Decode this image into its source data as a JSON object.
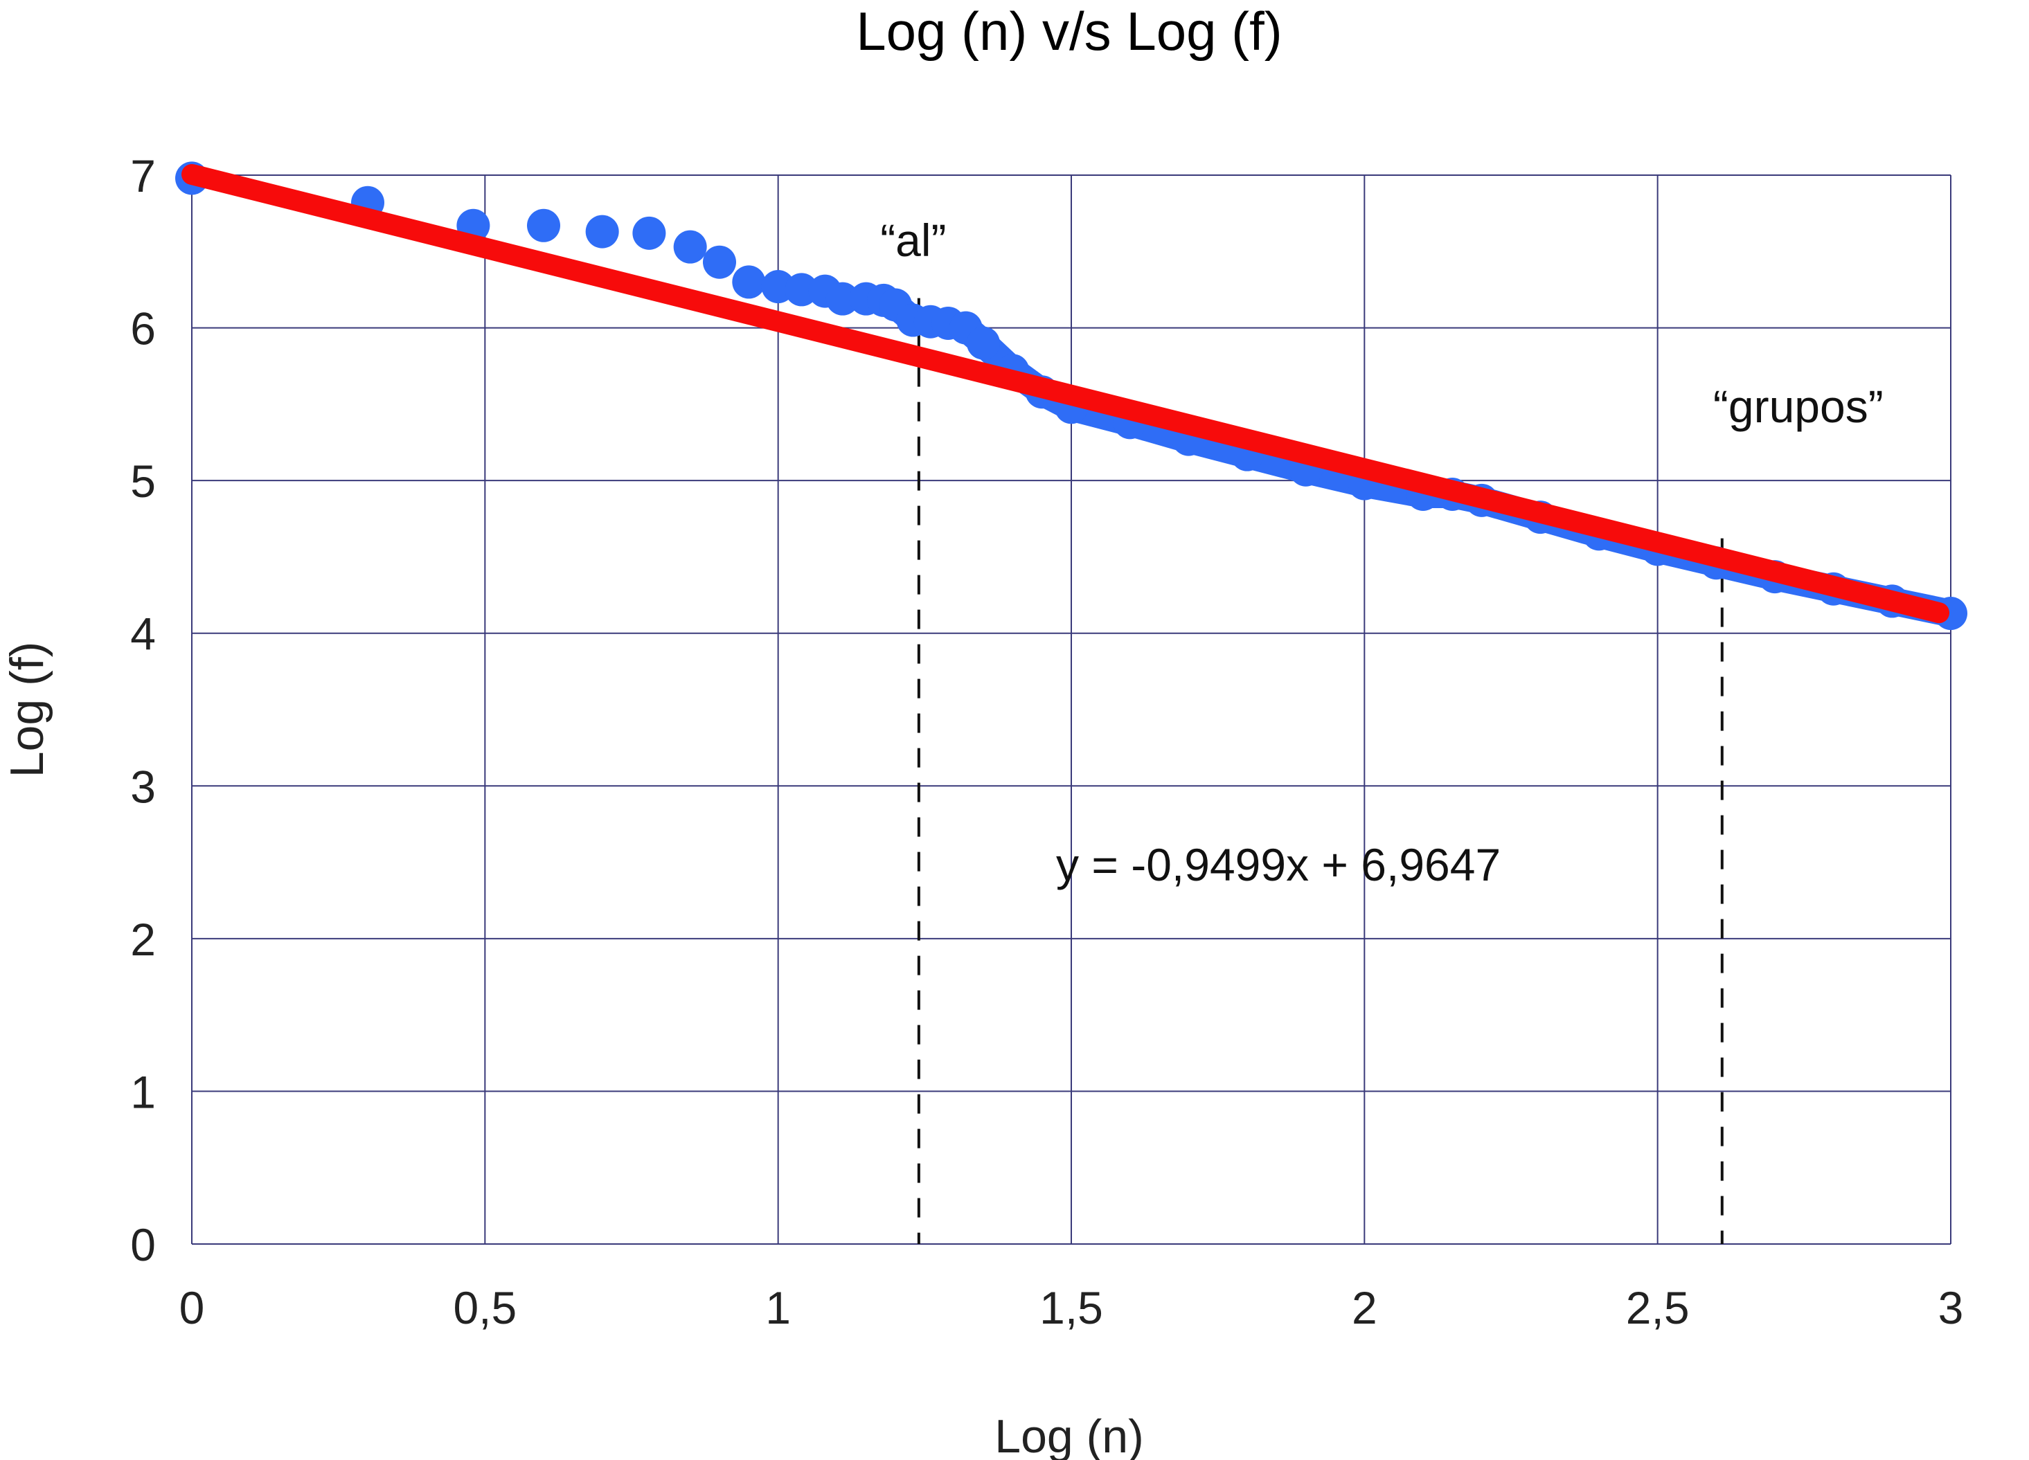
{
  "chart_data": {
    "type": "scatter",
    "title": "Log (n) v/s Log (f)",
    "xlabel": "Log (n)",
    "ylabel": "Log (f)",
    "xlim": [
      0,
      3
    ],
    "ylim": [
      0,
      7
    ],
    "x_ticks": [
      "0",
      "0,5",
      "1",
      "1,5",
      "2",
      "2,5",
      "3"
    ],
    "y_ticks": [
      "0",
      "1",
      "2",
      "3",
      "4",
      "5",
      "6",
      "7"
    ],
    "grid": true,
    "series": [
      {
        "color": "#2f6df6",
        "points": [
          [
            0.0,
            6.98
          ],
          [
            0.3,
            6.82
          ],
          [
            0.48,
            6.67
          ],
          [
            0.6,
            6.67
          ],
          [
            0.7,
            6.63
          ],
          [
            0.78,
            6.62
          ],
          [
            0.85,
            6.53
          ],
          [
            0.9,
            6.43
          ],
          [
            0.95,
            6.3
          ],
          [
            1.0,
            6.27
          ],
          [
            1.04,
            6.25
          ],
          [
            1.08,
            6.24
          ],
          [
            1.11,
            6.19
          ],
          [
            1.15,
            6.19
          ],
          [
            1.18,
            6.18
          ],
          [
            1.2,
            6.15
          ],
          [
            1.23,
            6.05
          ],
          [
            1.26,
            6.04
          ],
          [
            1.29,
            6.03
          ],
          [
            1.32,
            6.0
          ],
          [
            1.35,
            5.9
          ],
          [
            1.4,
            5.72
          ],
          [
            1.45,
            5.58
          ],
          [
            1.5,
            5.48
          ],
          [
            1.6,
            5.38
          ],
          [
            1.7,
            5.27
          ],
          [
            1.8,
            5.17
          ],
          [
            1.9,
            5.07
          ],
          [
            2.0,
            4.98
          ],
          [
            2.1,
            4.91
          ],
          [
            2.15,
            4.91
          ],
          [
            2.2,
            4.87
          ],
          [
            2.3,
            4.76
          ],
          [
            2.4,
            4.65
          ],
          [
            2.5,
            4.55
          ],
          [
            2.6,
            4.46
          ],
          [
            2.7,
            4.37
          ],
          [
            2.8,
            4.29
          ],
          [
            2.9,
            4.21
          ],
          [
            3.0,
            4.13
          ]
        ]
      }
    ],
    "trendline": {
      "color": "#f70b0b",
      "slope": -0.9499,
      "intercept": 6.9647,
      "label": "y = -0,9499x + 6,9647"
    },
    "annotations": [
      {
        "label": "“al”",
        "x": 1.24
      },
      {
        "label": "“grupos”",
        "x": 2.61
      }
    ]
  }
}
